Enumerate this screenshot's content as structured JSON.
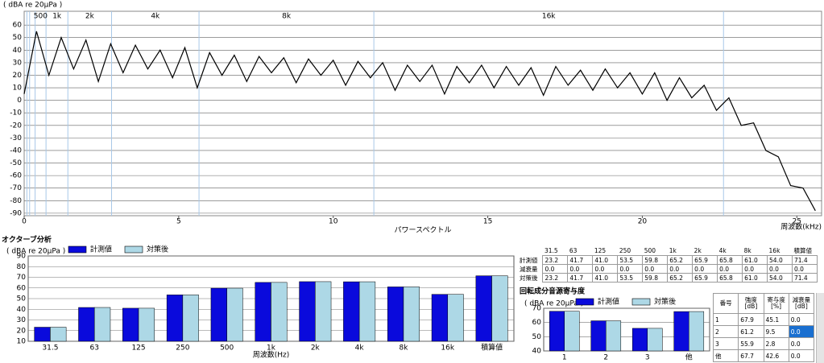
{
  "chart_data": [
    {
      "type": "line",
      "y_axis_label": "( dBA re 20μPa )",
      "x_label": "周波数(kHz)",
      "caption": "パワースペクトル",
      "x": [
        0,
        0.4,
        0.8,
        1.2,
        1.6,
        2.0,
        2.4,
        2.8,
        3.2,
        3.6,
        4.0,
        4.4,
        4.8,
        5.2,
        5.6,
        6.0,
        6.4,
        6.8,
        7.2,
        7.6,
        8.0,
        8.4,
        8.8,
        9.2,
        9.6,
        10.0,
        10.4,
        10.8,
        11.2,
        11.6,
        12.0,
        12.4,
        12.8,
        13.2,
        13.6,
        14.0,
        14.4,
        14.8,
        15.2,
        15.6,
        16.0,
        16.4,
        16.8,
        17.2,
        17.6,
        18.0,
        18.4,
        18.8,
        19.2,
        19.6,
        20.0,
        20.4,
        20.8,
        21.2,
        21.6,
        22.0,
        22.4,
        22.8,
        23.2,
        23.6,
        24.0,
        24.4,
        24.8,
        25.2,
        25.6
      ],
      "series": [
        {
          "color": "#000000",
          "values": [
            5,
            55,
            20,
            50,
            25,
            48,
            15,
            45,
            22,
            44,
            25,
            40,
            18,
            42,
            10,
            38,
            20,
            36,
            15,
            35,
            22,
            34,
            14,
            33,
            20,
            32,
            12,
            31,
            18,
            30,
            8,
            28,
            15,
            28,
            5,
            27,
            14,
            28,
            10,
            27,
            12,
            26,
            4,
            27,
            12,
            24,
            8,
            25,
            10,
            22,
            5,
            22,
            0,
            18,
            2,
            12,
            -8,
            2,
            -20,
            -18,
            -40,
            -45,
            -68,
            -70,
            -88
          ]
        }
      ],
      "xlim": [
        0,
        25.8
      ],
      "ylim": [
        -92,
        71
      ],
      "xticks": [
        0,
        5,
        10,
        15,
        20,
        25
      ],
      "yticks": [
        60,
        50,
        40,
        30,
        20,
        10,
        0,
        -10,
        -20,
        -30,
        -40,
        -50,
        -60,
        -70,
        -80,
        -90
      ],
      "grid": true,
      "band_edges": [
        0.088,
        0.177,
        0.354,
        0.707,
        1.414,
        2.828,
        5.657,
        11.314,
        22.627
      ],
      "band_labels": [
        "500",
        "1k",
        "2k",
        "4k",
        "8k",
        "16k"
      ],
      "band_color": "#a8c8e8"
    },
    {
      "type": "bar",
      "title": "オクターブ分析",
      "y_axis_label": "( dBA re 20μPa )",
      "x_label": "周波数(Hz)",
      "categories": [
        "31.5",
        "63",
        "125",
        "250",
        "500",
        "1k",
        "2k",
        "4k",
        "8k",
        "16k",
        "積算値"
      ],
      "series": [
        {
          "name": "計測値",
          "color": "#0a0adc",
          "values": [
            23.2,
            41.7,
            41.0,
            53.5,
            59.8,
            65.2,
            65.9,
            65.8,
            61.0,
            54.0,
            71.4
          ]
        },
        {
          "name": "対策後",
          "color": "#add8e6",
          "values": [
            23.2,
            41.7,
            41.0,
            53.5,
            59.8,
            65.2,
            65.9,
            65.8,
            61.0,
            54.0,
            71.4
          ]
        }
      ],
      "ylim": [
        10,
        90
      ],
      "yticks": [
        10,
        20,
        30,
        40,
        50,
        60,
        70,
        80,
        90
      ],
      "grid": true
    },
    {
      "type": "bar",
      "title": "回転成分音源寄与度",
      "y_axis_label": "( dBA re 20μPa )",
      "categories": [
        "1",
        "2",
        "3",
        "他"
      ],
      "series": [
        {
          "name": "計測値",
          "color": "#0a0adc",
          "values": [
            67.9,
            61.2,
            55.9,
            67.7
          ]
        },
        {
          "name": "対策後",
          "color": "#add8e6",
          "values": [
            67.9,
            61.2,
            55.9,
            67.7
          ]
        }
      ],
      "ylim": [
        40,
        70
      ],
      "yticks": [
        40,
        50,
        60,
        70
      ],
      "grid": true
    }
  ],
  "octave_table": {
    "columns": [
      "31.5",
      "63",
      "125",
      "250",
      "500",
      "1k",
      "2k",
      "4k",
      "8k",
      "16k",
      "積算値"
    ],
    "rows": [
      {
        "label": "計測値",
        "cells": [
          "23.2",
          "41.7",
          "41.0",
          "53.5",
          "59.8",
          "65.2",
          "65.9",
          "65.8",
          "61.0",
          "54.0",
          "71.4"
        ]
      },
      {
        "label": "減衰量",
        "cells": [
          "0.0",
          "0.0",
          "0.0",
          "0.0",
          "0.0",
          "0.0",
          "0.0",
          "0.0",
          "0.0",
          "0.0",
          "0.0"
        ]
      },
      {
        "label": "対策後",
        "cells": [
          "23.2",
          "41.7",
          "41.0",
          "53.5",
          "59.8",
          "65.2",
          "65.9",
          "65.8",
          "61.0",
          "54.0",
          "71.4"
        ]
      }
    ]
  },
  "contribution_table": {
    "header": [
      "番号",
      "強度[dB]",
      "寄与度[%]",
      "減衰量[dB]"
    ],
    "rows": [
      [
        "1",
        "67.9",
        "45.1",
        "0.0"
      ],
      [
        "2",
        "61.2",
        "9.5",
        "0.0"
      ],
      [
        "3",
        "55.9",
        "2.8",
        "0.0"
      ],
      [
        "他",
        "67.7",
        "42.6",
        "0.0"
      ]
    ],
    "selected_cell": [
      1,
      3
    ]
  }
}
